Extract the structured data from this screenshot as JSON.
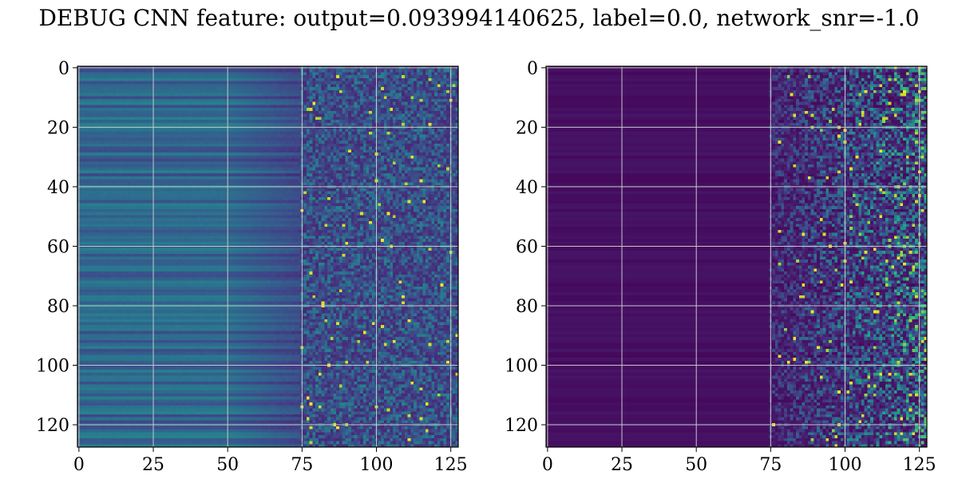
{
  "figure": {
    "title": "DEBUG CNN feature: output=0.093994140625, label=0.0, network_snr=-1.0"
  },
  "chart_data": [
    {
      "type": "heatmap",
      "title": "",
      "xlabel": "",
      "ylabel": "",
      "colormap": "viridis",
      "shape": [
        128,
        128
      ],
      "xlim": [
        0,
        127
      ],
      "ylim": [
        127,
        0
      ],
      "xticks": [
        0,
        25,
        50,
        75,
        100,
        125
      ],
      "yticks": [
        0,
        20,
        40,
        60,
        80,
        100,
        120
      ],
      "grid": true,
      "description_values": {
        "cols_0_50": "rows of nearly constant mid-range value with horizontal banding",
        "cols_50_75": "gradual fade to darker values",
        "cols_75_127": "speckled noisy values with occasional bright (yellow) peaks"
      }
    },
    {
      "type": "heatmap",
      "title": "",
      "xlabel": "",
      "ylabel": "",
      "colormap": "viridis",
      "shape": [
        128,
        128
      ],
      "xlim": [
        0,
        127
      ],
      "ylim": [
        127,
        0
      ],
      "xticks": [
        0,
        25,
        50,
        75,
        100,
        125
      ],
      "yticks": [
        0,
        20,
        40,
        60,
        80,
        100,
        120
      ],
      "grid": true,
      "description_values": {
        "cols_0_75": "near-zero (dark purple) with faint banding",
        "cols_75_127": "increasing sparse activations, brightest near the right edge"
      }
    }
  ],
  "colors": {
    "grid": "#c8c8c8",
    "axes": "#000000"
  }
}
